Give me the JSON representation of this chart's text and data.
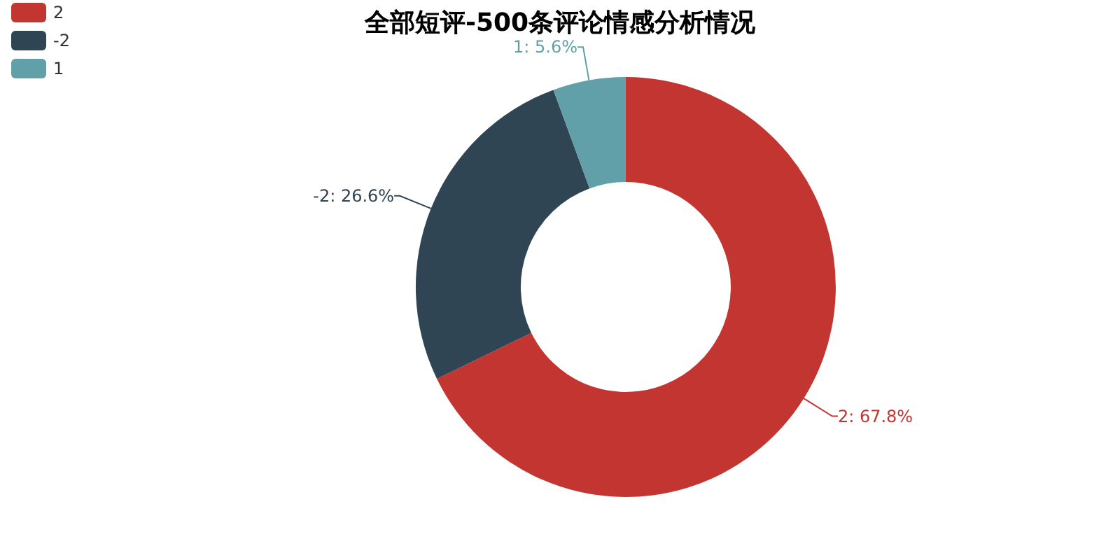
{
  "chart_data": {
    "type": "donut",
    "title": "全部短评-500条评论情感分析情况",
    "categories": [
      "2",
      "-2",
      "1"
    ],
    "values": [
      67.8,
      26.6,
      5.6
    ],
    "colors": [
      "#c23531",
      "#2f4554",
      "#61a0a8"
    ],
    "value_labels": [
      "2: 67.8%",
      "-2: 26.6%",
      "1: 5.6%"
    ],
    "legend": "top left"
  }
}
